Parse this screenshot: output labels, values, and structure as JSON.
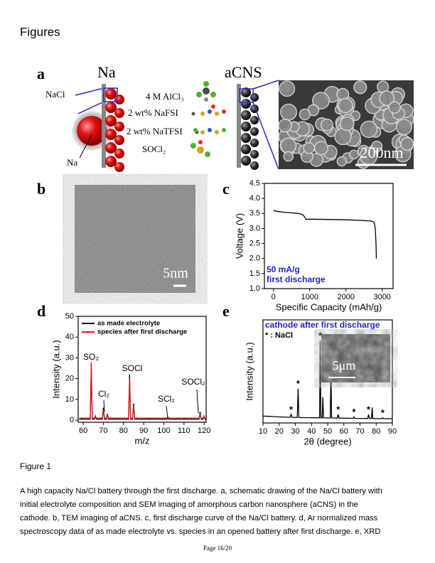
{
  "heading": "Figures",
  "figure": {
    "a": {
      "label": "a",
      "na": "Na",
      "acns": "aCNS",
      "nacl": "NaCl",
      "na_ball": "Na",
      "electrolyte": [
        "4 M AlCl₃",
        "2 wt% NaFSI",
        "2 wt% NaTFSI",
        "SOCl₂"
      ],
      "scale": "200nm"
    },
    "b": {
      "label": "b",
      "scale": "5nm"
    },
    "c": {
      "type": "line",
      "label": "c",
      "xlabel": "Specific Capacity (mAh/g)",
      "ylabel": "Voltage (V)",
      "xlim": [
        -250,
        3300
      ],
      "ylim": [
        1.0,
        4.5
      ],
      "xticks": [
        0,
        1000,
        2000,
        3000
      ],
      "yticks": [
        {
          "value": 1,
          "label": "1.0"
        },
        1.5,
        {
          "value": 2,
          "label": "2.0"
        },
        2.5,
        {
          "value": 3,
          "label": "3.0"
        },
        3.5,
        {
          "value": 4,
          "label": "4.0"
        },
        4.5
      ],
      "annotations": [
        "50 mA/g",
        "first discharge"
      ],
      "annotation_color": "#2323d6",
      "series": [
        {
          "color": "#000000",
          "x": [
            0,
            100,
            300,
            500,
            700,
            800,
            850,
            900,
            1000,
            1500,
            2000,
            2400,
            2700,
            2780,
            2810,
            2830,
            2840
          ],
          "y": [
            3.6,
            3.57,
            3.54,
            3.52,
            3.5,
            3.47,
            3.4,
            3.3,
            3.31,
            3.3,
            3.29,
            3.27,
            3.25,
            3.2,
            3.0,
            2.5,
            2.0
          ]
        }
      ]
    },
    "d": {
      "type": "line",
      "label": "d",
      "xlabel": "m/z",
      "ylabel": "Intensity (a.u.)",
      "xlim": [
        57.5,
        121
      ],
      "ylim": [
        -1,
        50
      ],
      "xticks": [
        60,
        70,
        80,
        90,
        100,
        110,
        120
      ],
      "yticks": [
        0,
        10,
        20,
        30,
        40,
        50
      ],
      "legend": "upper left",
      "x": [
        58,
        63.5,
        64,
        64.5,
        65.5,
        66,
        66.5,
        69.5,
        70,
        70.5,
        71.5,
        72,
        72.5,
        82.5,
        83,
        83.5,
        84.5,
        85,
        85.5,
        101.5,
        102,
        102.5,
        117.5,
        118,
        118.5,
        119.5,
        120,
        120.5,
        121
      ],
      "series": [
        {
          "name": "as made electrolyte",
          "color": "#000000",
          "values": [
            0.5,
            0.5,
            26,
            0.5,
            0.5,
            2,
            0.5,
            0.5,
            6,
            0.5,
            0.5,
            3,
            0.5,
            0.5,
            22,
            0.5,
            0.5,
            8,
            0.5,
            0.5,
            1,
            0.5,
            0.5,
            4,
            0.5,
            0.5,
            2,
            0.5,
            0.5
          ]
        },
        {
          "name": "species after first discharge",
          "color": "#e0191f",
          "values": [
            1,
            1,
            28,
            1,
            1,
            2,
            1,
            1,
            5,
            1,
            1,
            3,
            1,
            1,
            20,
            1,
            1,
            7,
            1,
            1,
            1.5,
            1,
            1,
            3,
            1,
            1,
            2,
            1,
            1
          ]
        }
      ],
      "peak_labels": [
        "SO₂",
        "Cl₂",
        "SOCl",
        "SCl₂",
        "SOCl₂"
      ]
    },
    "e": {
      "type": "line",
      "label": "e",
      "xlabel": "2θ (degree)",
      "ylabel": "Intensity (a.u.)",
      "xlim": [
        10,
        90
      ],
      "ylim": [
        0,
        60
      ],
      "xticks": [
        10,
        20,
        30,
        40,
        50,
        60,
        70,
        80,
        90
      ],
      "legend_title": "cathode after first discharge",
      "legend_marker": "* : NaCl",
      "star": "*",
      "nacl_peaks": [
        27.4,
        31.7,
        45.4,
        56.5,
        66.2,
        75.3,
        84
      ],
      "inset_scale": "5μm",
      "x": [
        10,
        20,
        26.8,
        27.4,
        28,
        31.2,
        31.7,
        32.2,
        35,
        45,
        45.4,
        45.8,
        46.6,
        47,
        47.4,
        51.6,
        52,
        52.4,
        56,
        56.5,
        57,
        65.7,
        66.2,
        66.7,
        74.8,
        75.3,
        75.8,
        77.1,
        77.5,
        77.9,
        83.5,
        84,
        84.5,
        90
      ],
      "series": [
        {
          "color": "#000000",
          "values": [
            4,
            3.5,
            3.3,
            5,
            3.3,
            3.2,
            20,
            3.2,
            3.1,
            3,
            48,
            3,
            3,
            15,
            3,
            2.9,
            30,
            2.9,
            2.8,
            5,
            2.8,
            2.7,
            3.5,
            2.7,
            2.6,
            5,
            2.6,
            2.6,
            9,
            2.6,
            2.5,
            3,
            2.5,
            2.5
          ]
        }
      ]
    }
  },
  "caption": {
    "title": "Figure 1",
    "lines": [
      "A high capacity Na/Cl battery through the first discharge. a, schematic drawing of the Na/Cl battery with",
      "initial electrolyte composition and SEM imaging of amorphous carbon nanosphere (aCNS) in the",
      "cathode. b, TEM imaging of aCNS. c, first discharge curve of the Na/Cl battery. d, Ar normalized mass",
      "spectroscopy data of as made electrolyte vs. species in an opened battery after first discharge. e, XRD"
    ]
  },
  "footer": "Page 16/20"
}
